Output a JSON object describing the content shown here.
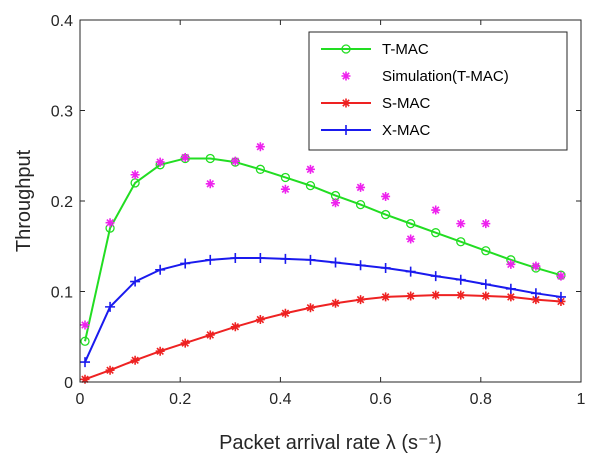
{
  "chart_data": {
    "type": "line",
    "xlabel": "Packet arrival rate λ (s⁻¹)",
    "ylabel": "Throughput",
    "xlim": [
      0,
      1
    ],
    "ylim": [
      0,
      0.4
    ],
    "x_ticks": [
      "0",
      "0.2",
      "0.4",
      "0.6",
      "0.8",
      "1"
    ],
    "y_ticks": [
      "0",
      "0.1",
      "0.2",
      "0.3",
      "0.4"
    ],
    "grid": false,
    "legend_position": "top-right",
    "series": [
      {
        "name": "T-MAC",
        "color": "#22dd22",
        "style": "line-circle",
        "x": [
          0.01,
          0.06,
          0.11,
          0.16,
          0.21,
          0.26,
          0.31,
          0.36,
          0.41,
          0.46,
          0.51,
          0.56,
          0.61,
          0.66,
          0.71,
          0.76,
          0.81,
          0.86,
          0.91,
          0.96
        ],
        "values": [
          0.045,
          0.17,
          0.22,
          0.24,
          0.247,
          0.247,
          0.243,
          0.235,
          0.226,
          0.217,
          0.206,
          0.196,
          0.185,
          0.175,
          0.165,
          0.155,
          0.145,
          0.135,
          0.126,
          0.118
        ]
      },
      {
        "name": "Simulation(T-MAC)",
        "color": "#ee22ee",
        "style": "asterisk",
        "x": [
          0.01,
          0.06,
          0.11,
          0.16,
          0.21,
          0.26,
          0.31,
          0.36,
          0.41,
          0.46,
          0.51,
          0.56,
          0.61,
          0.66,
          0.71,
          0.76,
          0.81,
          0.86,
          0.91,
          0.96
        ],
        "values": [
          0.063,
          0.176,
          0.229,
          0.243,
          0.248,
          0.219,
          0.244,
          0.26,
          0.213,
          0.235,
          0.198,
          0.215,
          0.205,
          0.158,
          0.19,
          0.175,
          0.175,
          0.13,
          0.128,
          0.117
        ]
      },
      {
        "name": "S-MAC",
        "color": "#ee2222",
        "style": "line-asterisk",
        "x": [
          0.01,
          0.06,
          0.11,
          0.16,
          0.21,
          0.26,
          0.31,
          0.36,
          0.41,
          0.46,
          0.51,
          0.56,
          0.61,
          0.66,
          0.71,
          0.76,
          0.81,
          0.86,
          0.91,
          0.96
        ],
        "values": [
          0.003,
          0.013,
          0.024,
          0.034,
          0.043,
          0.052,
          0.061,
          0.069,
          0.076,
          0.082,
          0.087,
          0.091,
          0.094,
          0.095,
          0.096,
          0.096,
          0.095,
          0.094,
          0.091,
          0.089
        ]
      },
      {
        "name": "X-MAC",
        "color": "#1a1aee",
        "style": "line-plus",
        "x": [
          0.01,
          0.06,
          0.11,
          0.16,
          0.21,
          0.26,
          0.31,
          0.36,
          0.41,
          0.46,
          0.51,
          0.56,
          0.61,
          0.66,
          0.71,
          0.76,
          0.81,
          0.86,
          0.91,
          0.96
        ],
        "values": [
          0.022,
          0.083,
          0.111,
          0.124,
          0.131,
          0.135,
          0.137,
          0.137,
          0.136,
          0.135,
          0.132,
          0.129,
          0.126,
          0.122,
          0.117,
          0.113,
          0.108,
          0.103,
          0.098,
          0.094
        ]
      }
    ]
  }
}
